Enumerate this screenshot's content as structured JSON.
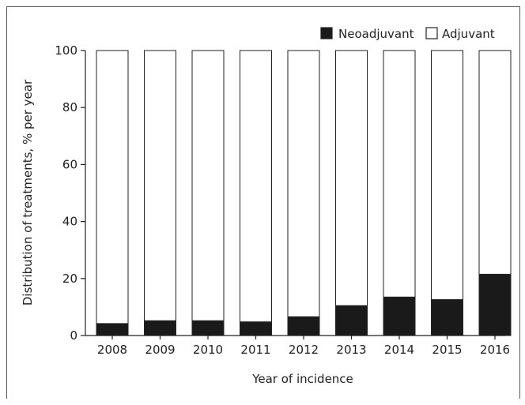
{
  "chart_data": {
    "type": "bar",
    "stacked": true,
    "categories": [
      "2008",
      "2009",
      "2010",
      "2011",
      "2012",
      "2013",
      "2014",
      "2015",
      "2016"
    ],
    "series": [
      {
        "name": "Neoadjuvant",
        "color": "#1a1a1a",
        "values": [
          4.2,
          5.2,
          5.2,
          4.8,
          6.6,
          10.5,
          13.5,
          12.6,
          21.5
        ]
      },
      {
        "name": "Adjuvant",
        "color": "#ffffff",
        "values": [
          95.8,
          94.8,
          94.8,
          95.2,
          93.4,
          89.5,
          86.5,
          87.4,
          78.5
        ]
      }
    ],
    "xlabel": "Year of incidence",
    "ylabel": "Distribution of treatments, % per year",
    "ylim": [
      0,
      100
    ],
    "yticks": [
      0,
      20,
      40,
      60,
      80,
      100
    ],
    "grid": false,
    "legend_position": "top-right"
  }
}
